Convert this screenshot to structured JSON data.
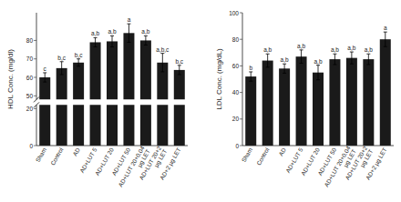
{
  "chart_data": [
    {
      "type": "bar",
      "categories": [
        "Sham",
        "Control",
        "AD",
        "AD+LUT 5",
        "AD+LUT 20",
        "AD+LUT 50",
        "AD+LUT 20+0.04\nµg LET",
        "AD+LUT 20+2\nµg LET",
        "AD+2 µg LET"
      ],
      "values": [
        60,
        65,
        68,
        79,
        79.5,
        84,
        80,
        68,
        64
      ],
      "errors": [
        2.5,
        3.5,
        2.0,
        2.5,
        3.0,
        5.0,
        2.5,
        5.0,
        2.5
      ],
      "annotations": [
        "c",
        "b,c",
        "b,c",
        "a,b",
        "a,b",
        "a",
        "a,b",
        "a,b,c",
        "b,c"
      ],
      "y_label": "HDL Conc. (mg/dl)",
      "ylim": [
        [
          0,
          22
        ],
        [
          48,
          95
        ]
      ],
      "yticks": [
        0,
        20,
        50,
        60,
        70,
        80
      ],
      "color": "#1a1a1a",
      "grid": false
    },
    {
      "type": "bar",
      "categories": [
        "Sham",
        "Control",
        "AD",
        "AD+LUT 5",
        "AD+LUT 20",
        "AD+LUT 50",
        "AD+LUT 20+0.04\nµg LET",
        "AD+LUT 20+2\nµg LET",
        "AD+2 µg LET"
      ],
      "values": [
        52,
        64,
        58,
        67,
        55,
        65,
        66,
        65,
        80
      ],
      "errors": [
        3.5,
        5.0,
        3.5,
        5.0,
        5.5,
        4.0,
        4.5,
        4.0,
        5.5
      ],
      "annotations": [
        "b",
        "a,b",
        "a,b",
        "a,b",
        "a,b",
        "a,b",
        "a,b",
        "a,b",
        "a"
      ],
      "y_label": "LDL Conc. (mg/dL)",
      "ylim": [
        0,
        100
      ],
      "yticks": [
        0,
        20,
        40,
        60,
        80,
        100
      ],
      "color": "#1a1a1a",
      "grid": false
    }
  ]
}
